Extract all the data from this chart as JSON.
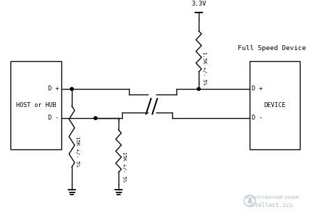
{
  "bg_color": "#ffffff",
  "line_color": "#000000",
  "text_color": "#000000",
  "watermark_color": "#b0bcd0",
  "figsize": [
    4.46,
    3.08
  ],
  "dpi": 100,
  "label_3v3": "3.3V",
  "label_full_speed": "Full Speed Device",
  "label_host": "HOST or HUB",
  "label_device": "DEVICE",
  "label_dp_left": "D +",
  "label_dm_left": "D -",
  "label_dp_right": "D +",
  "label_dm_right": "D -",
  "label_r1": "15K +/- 5%",
  "label_r2": "15K +/- 5%",
  "label_r3": "1.5K +/- 5%",
  "watermark_text": "intellect.icu",
  "watermark_sub": "Искусственный разум"
}
